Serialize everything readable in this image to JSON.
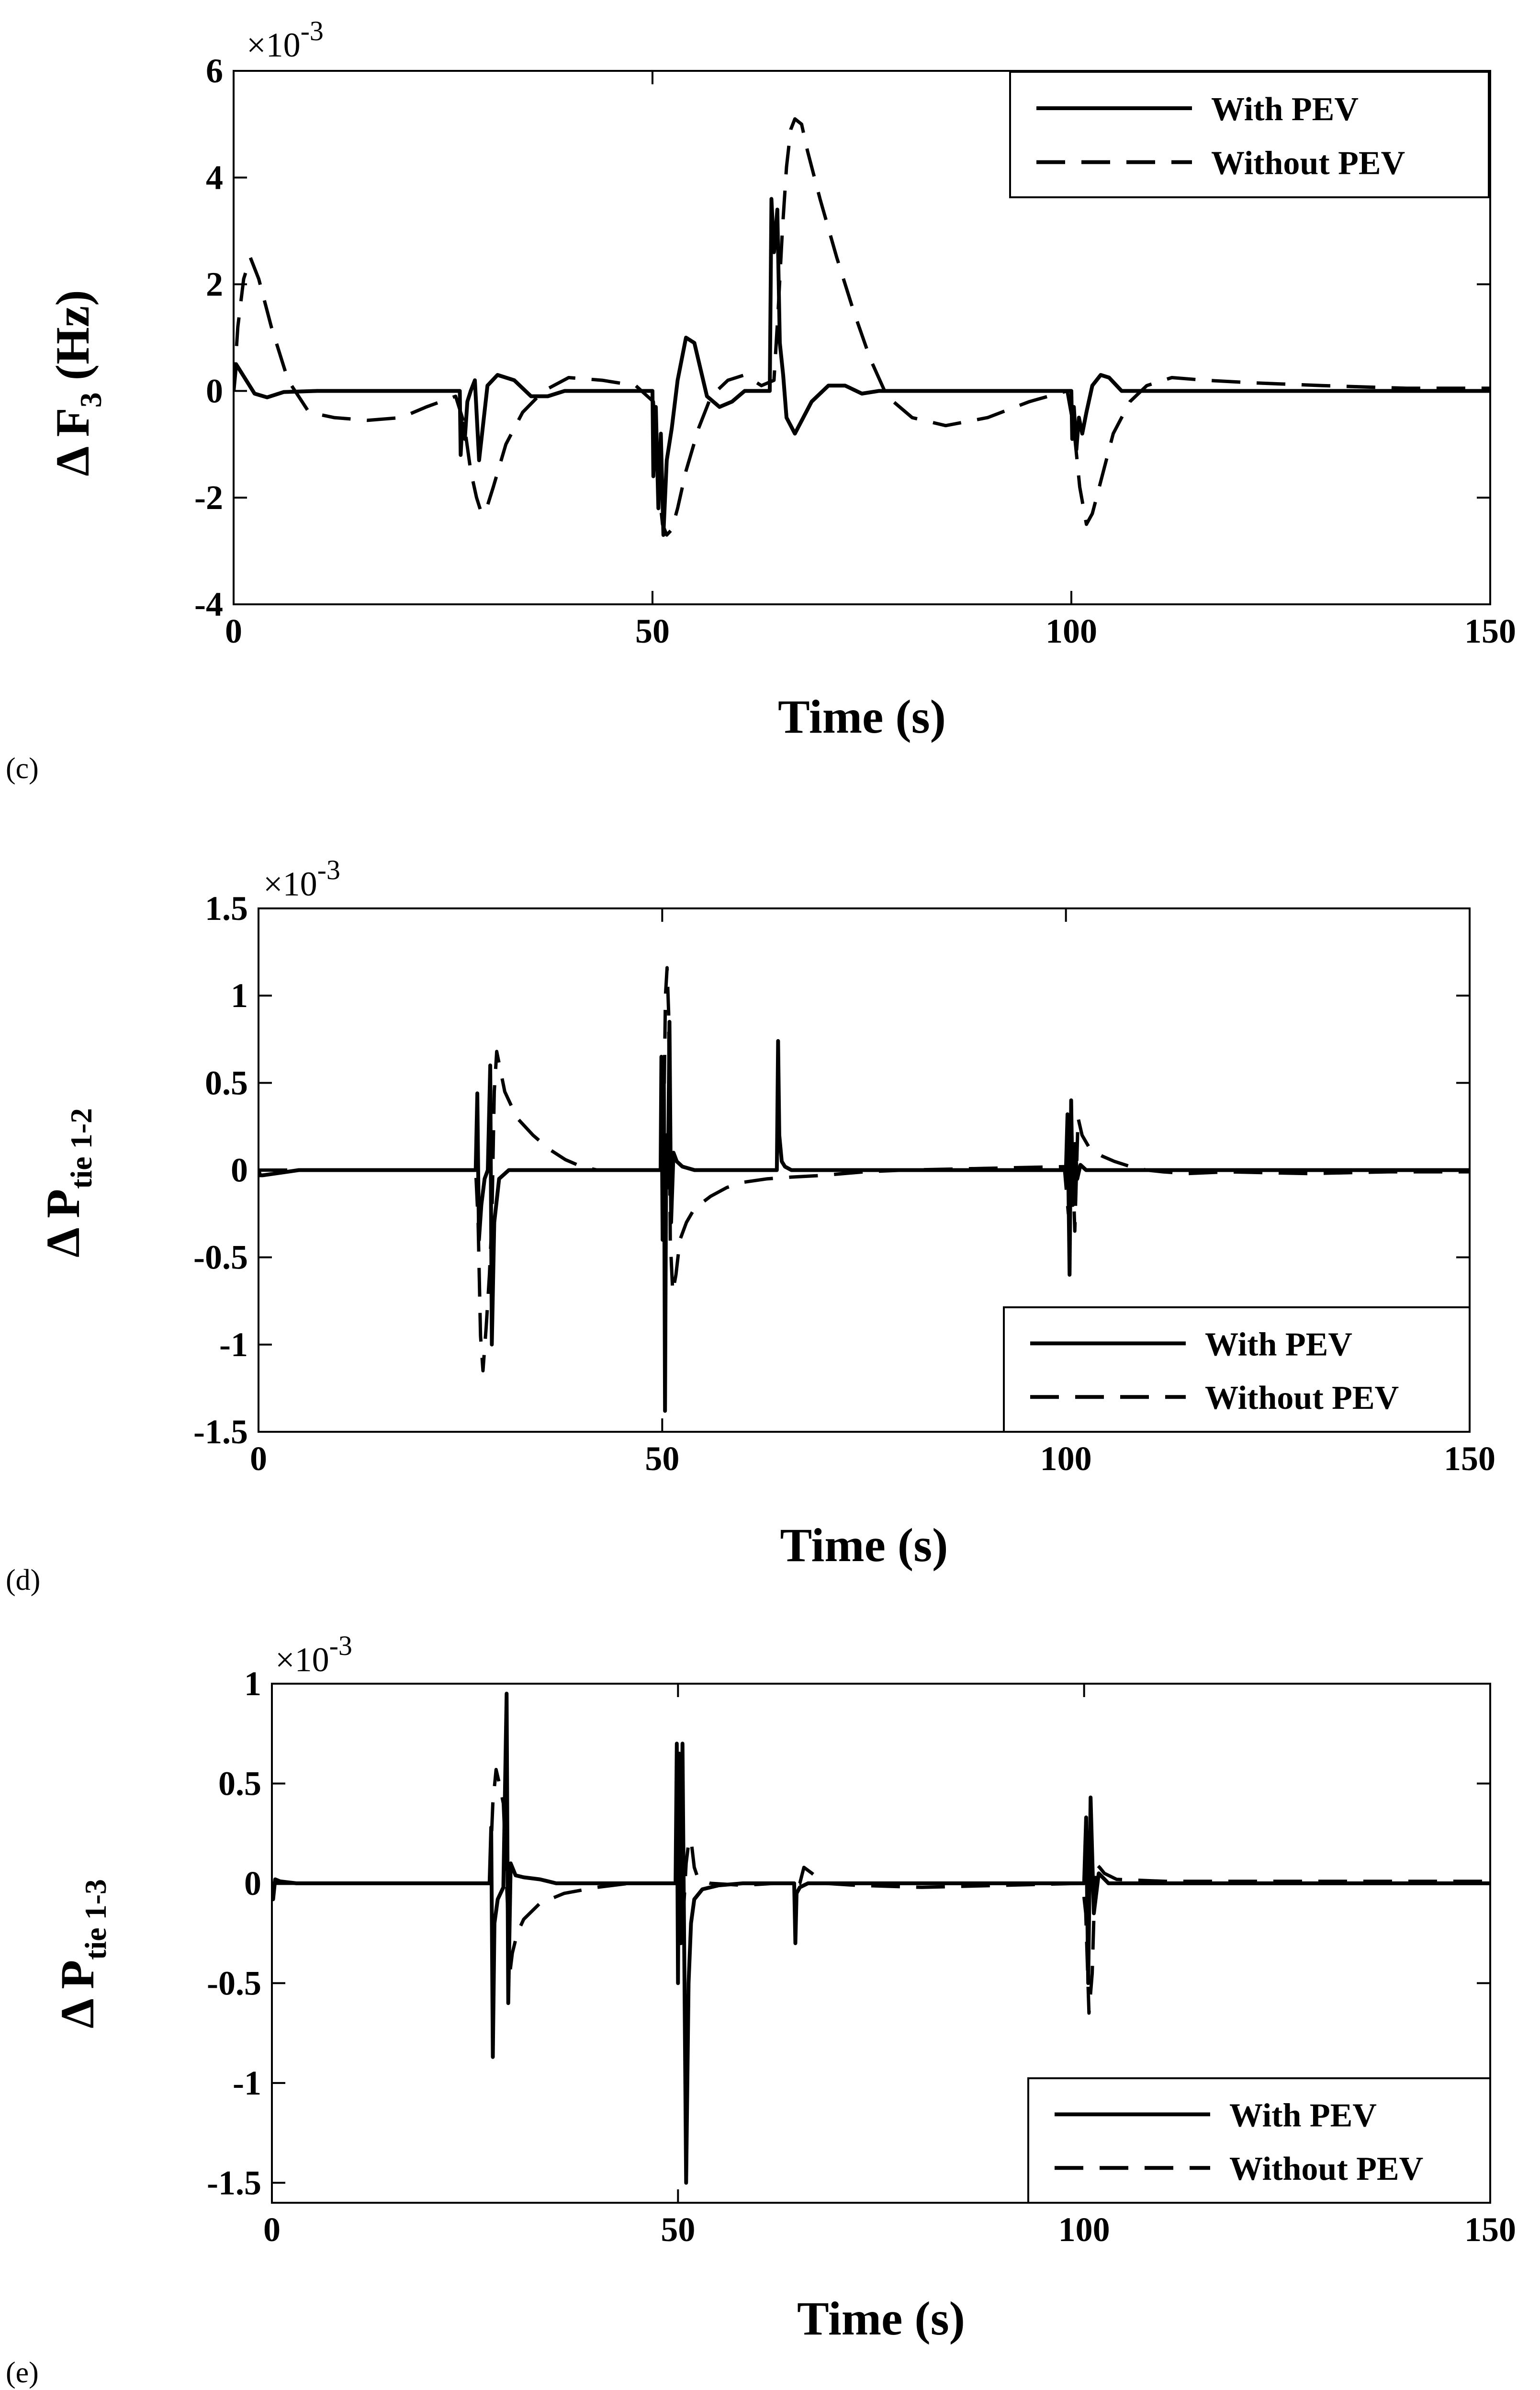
{
  "chart_data": [
    {
      "type": "line",
      "panel_label": "(c)",
      "ylabel": {
        "prefix": "Δ F",
        "sub": "3",
        "suffix": " (Hz)"
      },
      "xlabel": "Time (s)",
      "multiplier": {
        "base": "×10",
        "exp": "-3"
      },
      "xlim": [
        0,
        150
      ],
      "ylim": [
        -4,
        6
      ],
      "xticks": [
        "0",
        "50",
        "100",
        "150"
      ],
      "yticks": [
        "-4",
        "-2",
        "0",
        "2",
        "4",
        "6"
      ],
      "legend": {
        "position": "top-right",
        "entries": [
          "With PEV",
          "Without PEV"
        ]
      },
      "series": [
        {
          "name": "With PEV",
          "style": "solid",
          "x": [
            0,
            0.3,
            1.5,
            2.5,
            4,
            6,
            10,
            27.0,
            27.1,
            27.3,
            27.6,
            27.9,
            28.3,
            28.8,
            29.3,
            30.3,
            31.5,
            33.5,
            35.5,
            37.5,
            39.5,
            40,
            50.0,
            50.1,
            50.4,
            50.7,
            51.0,
            51.3,
            51.7,
            52.3,
            53.0,
            54.0,
            55.0,
            56.5,
            58.0,
            59.5,
            61.0,
            62.5,
            64.0,
            64.2,
            64.5,
            64.9,
            65.2,
            65.6,
            66.0,
            67.0,
            68.0,
            69.0,
            71.0,
            73.0,
            75.0,
            77.0,
            79.0,
            82.0,
            100.0,
            100.1,
            100.3,
            100.6,
            100.9,
            101.3,
            101.8,
            102.5,
            103.5,
            104.5,
            106.0,
            108.0,
            110.0,
            112.0,
            150
          ],
          "y": [
            0,
            0.5,
            0.2,
            -0.05,
            -0.12,
            -0.02,
            0,
            0,
            -1.2,
            -0.6,
            -0.9,
            -0.2,
            0,
            0.2,
            -1.3,
            0.1,
            0.3,
            0.2,
            -0.1,
            -0.1,
            0,
            0,
            0,
            -1.6,
            -0.3,
            -2.2,
            -0.8,
            -2.7,
            -1.3,
            -0.7,
            0.2,
            1.0,
            0.9,
            -0.1,
            -0.3,
            -0.2,
            0,
            0,
            0,
            3.6,
            2.6,
            3.4,
            0.9,
            0.3,
            -0.5,
            -0.8,
            -0.5,
            -0.2,
            0.1,
            0.1,
            -0.05,
            0,
            0,
            0,
            0,
            -0.9,
            -0.3,
            -1.1,
            -0.5,
            -0.8,
            -0.4,
            0.1,
            0.3,
            0.25,
            0,
            0,
            0,
            0,
            0
          ]
        },
        {
          "name": "Without PEV",
          "style": "dashed",
          "x": [
            0,
            0.5,
            1.2,
            2.0,
            3.0,
            4.5,
            6.5,
            9,
            12,
            16,
            20,
            23,
            26.5,
            27.5,
            28.3,
            29.0,
            29.6,
            30.2,
            31.0,
            32.5,
            34.5,
            37.0,
            40,
            44,
            48,
            50.1,
            50.6,
            51.2,
            51.7,
            52.3,
            53.0,
            54.0,
            55.5,
            57.0,
            59.0,
            61.0,
            63.0,
            64.5,
            65.0,
            65.5,
            66.0,
            66.5,
            67.0,
            67.8,
            68.5,
            70,
            72,
            74,
            76,
            78,
            81,
            85,
            90,
            95,
            99.5,
            100.3,
            101.0,
            101.8,
            102.5,
            103.5,
            105,
            107,
            109,
            112,
            116,
            122,
            130,
            140,
            150
          ],
          "y": [
            0,
            1.2,
            2.1,
            2.5,
            2.1,
            1.2,
            0.2,
            -0.4,
            -0.5,
            -0.55,
            -0.5,
            -0.3,
            -0.1,
            -0.6,
            -1.5,
            -2.0,
            -2.3,
            -2.2,
            -1.8,
            -1.0,
            -0.4,
            0,
            0.25,
            0.2,
            0.1,
            -0.2,
            -1.6,
            -2.5,
            -2.7,
            -2.6,
            -2.2,
            -1.5,
            -0.7,
            -0.1,
            0.2,
            0.3,
            0.1,
            0.2,
            1.5,
            3.0,
            4.2,
            4.9,
            5.1,
            5.0,
            4.5,
            3.6,
            2.5,
            1.5,
            0.6,
            -0.1,
            -0.5,
            -0.65,
            -0.5,
            -0.2,
            0,
            -0.7,
            -1.8,
            -2.5,
            -2.3,
            -1.7,
            -0.8,
            -0.2,
            0.1,
            0.25,
            0.2,
            0.15,
            0.1,
            0.05,
            0.05
          ]
        }
      ]
    },
    {
      "type": "line",
      "panel_label": "(d)",
      "ylabel": {
        "prefix": "Δ P",
        "sub": "tie 1-2",
        "suffix": ""
      },
      "xlabel": "Time (s)",
      "multiplier": {
        "base": "×10",
        "exp": "-3"
      },
      "xlim": [
        0,
        150
      ],
      "ylim": [
        -1.5,
        1.5
      ],
      "xticks": [
        "0",
        "50",
        "100",
        "150"
      ],
      "yticks": [
        "-1.5",
        "-1",
        "-0.5",
        "0",
        "0.5",
        "1",
        "1.5"
      ],
      "legend": {
        "position": "bottom-right",
        "entries": [
          "With PEV",
          "Without PEV"
        ]
      },
      "series": [
        {
          "name": "With PEV",
          "style": "solid",
          "x": [
            0,
            0.2,
            0.5,
            2,
            5,
            26.9,
            27.1,
            27.3,
            27.6,
            28.0,
            28.4,
            28.7,
            28.9,
            29.2,
            29.8,
            31,
            35,
            49.8,
            49.9,
            50.05,
            50.2,
            50.35,
            50.5,
            50.7,
            50.9,
            51.1,
            51.4,
            51.8,
            52.5,
            54,
            64.2,
            64.35,
            64.5,
            64.8,
            65.2,
            66,
            100.0,
            100.2,
            100.45,
            100.65,
            100.85,
            101.1,
            101.4,
            101.8,
            102.5,
            104,
            150
          ],
          "y": [
            0,
            -0.03,
            -0.03,
            -0.02,
            0,
            0,
            0.44,
            -0.4,
            -0.2,
            -0.05,
            0,
            0.6,
            -1.0,
            -0.3,
            -0.05,
            0,
            0,
            0,
            0.65,
            -0.4,
            0.55,
            -1.38,
            0.2,
            -0.1,
            0.85,
            -0.3,
            0.1,
            0.05,
            0.02,
            0,
            0,
            0.74,
            0.2,
            0.05,
            0.02,
            0,
            0,
            0.32,
            -0.6,
            0.4,
            -0.2,
            0.15,
            -0.05,
            0.03,
            0,
            0,
            0
          ]
        },
        {
          "name": "Without PEV",
          "style": "dashed",
          "x": [
            0,
            5,
            26.9,
            27.2,
            27.5,
            27.8,
            28.2,
            28.6,
            28.9,
            29.2,
            29.5,
            30.5,
            32,
            34,
            36,
            38,
            40,
            42,
            49.8,
            50.0,
            50.2,
            50.4,
            50.6,
            50.8,
            51.0,
            51.3,
            51.7,
            52.2,
            53,
            54,
            56,
            58,
            60,
            63,
            66,
            70,
            75,
            80,
            90,
            99.8,
            100.3,
            100.7,
            101.1,
            101.5,
            102,
            103,
            104.5,
            106,
            108,
            110,
            112,
            115,
            120,
            130,
            140,
            150
          ],
          "y": [
            0,
            0,
            0,
            -0.3,
            -0.95,
            -1.15,
            -0.9,
            -0.6,
            -0.3,
            0.45,
            0.68,
            0.45,
            0.3,
            0.2,
            0.12,
            0.06,
            0.02,
            0,
            0,
            0.5,
            0.3,
            1.0,
            1.16,
            0.9,
            -0.4,
            -0.7,
            -0.6,
            -0.4,
            -0.3,
            -0.22,
            -0.15,
            -0.1,
            -0.07,
            -0.05,
            -0.04,
            -0.03,
            -0.01,
            0,
            0.01,
            0.02,
            -0.25,
            0.25,
            -0.35,
            0.3,
            0.2,
            0.12,
            0.08,
            0.05,
            0.02,
            0,
            -0.01,
            -0.02,
            -0.01,
            -0.02,
            -0.01,
            -0.01
          ]
        }
      ]
    },
    {
      "type": "line",
      "panel_label": "(e)",
      "ylabel": {
        "prefix": "Δ P",
        "sub": "tie 1-3",
        "suffix": ""
      },
      "xlabel": "Time (s)",
      "multiplier": {
        "base": "×10",
        "exp": "-3"
      },
      "xlim": [
        0,
        150
      ],
      "ylim": [
        -1.6,
        1.0
      ],
      "xticks": [
        "0",
        "50",
        "100",
        "150"
      ],
      "yticks": [
        "-1.5",
        "-1",
        "-0.5",
        "0",
        "0.5",
        "1"
      ],
      "legend": {
        "position": "bottom-right",
        "entries": [
          "With PEV",
          "Without PEV"
        ]
      },
      "series": [
        {
          "name": "With PEV",
          "style": "solid",
          "x": [
            0,
            0.15,
            0.4,
            1,
            3,
            26.8,
            27.0,
            27.2,
            27.4,
            27.8,
            28.5,
            28.9,
            29.1,
            29.4,
            30,
            31,
            33,
            35,
            49.7,
            49.85,
            50.0,
            50.15,
            50.35,
            50.55,
            50.8,
            51.0,
            51.3,
            51.6,
            52,
            53,
            55,
            58,
            64.3,
            64.45,
            64.6,
            65,
            65.5,
            66,
            100.0,
            100.25,
            100.5,
            100.8,
            101.2,
            101.8,
            103,
            150
          ],
          "y": [
            0,
            -0.08,
            0.02,
            0.01,
            0,
            0,
            0.28,
            -0.87,
            -0.2,
            -0.08,
            -0.02,
            0.95,
            -0.6,
            0.1,
            0.04,
            0.03,
            0.02,
            0,
            0,
            0.7,
            -0.5,
            0.65,
            -0.3,
            0.7,
            -0.5,
            -1.5,
            -0.5,
            -0.2,
            -0.08,
            -0.03,
            -0.01,
            0,
            0,
            -0.3,
            -0.05,
            -0.02,
            -0.01,
            0,
            0,
            0.33,
            -0.5,
            0.43,
            -0.15,
            0.05,
            0,
            0
          ]
        },
        {
          "name": "Without PEV",
          "style": "dashed",
          "x": [
            0,
            10,
            26.8,
            27.2,
            27.6,
            28.0,
            28.5,
            29.0,
            29.3,
            29.6,
            30.2,
            31,
            33,
            36,
            40,
            44,
            49.7,
            50.0,
            50.3,
            50.6,
            51.0,
            51.3,
            51.6,
            52.0,
            52.5,
            54,
            58,
            62,
            65.0,
            65.5,
            66.5,
            68,
            72,
            80,
            90,
            99.8,
            100.2,
            100.6,
            101.0,
            101.4,
            101.9,
            102.5,
            104,
            110,
            120,
            135,
            150
          ],
          "y": [
            0,
            0,
            0,
            0.4,
            0.57,
            0.5,
            0.4,
            -0.1,
            -0.45,
            -0.35,
            -0.25,
            -0.18,
            -0.1,
            -0.05,
            -0.02,
            0,
            0,
            0.5,
            0.6,
            -0.2,
            0.1,
            0.2,
            0.22,
            0.08,
            0.02,
            0,
            -0.01,
            0,
            0,
            0.08,
            0.05,
            0,
            -0.01,
            -0.02,
            -0.01,
            0,
            -0.15,
            -0.65,
            -0.45,
            0.1,
            0.08,
            0.05,
            0.02,
            0.01,
            0.01,
            0.01,
            0.01
          ]
        }
      ]
    }
  ]
}
